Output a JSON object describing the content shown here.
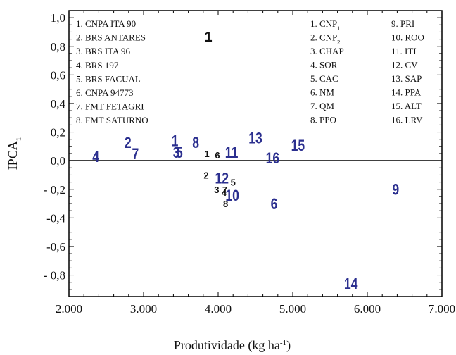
{
  "chart_data": {
    "type": "scatter",
    "xlabel": "Produtividade (kg ha",
    "xlabel_sup": "-1",
    "xlabel_close": ")",
    "ylabel": "IPCA",
    "ylabel_sub": "1",
    "xlim": [
      2000,
      7000
    ],
    "ylim": [
      -0.95,
      1.05
    ],
    "xticks": [
      {
        "v": 2000,
        "t": "2.000"
      },
      {
        "v": 3000,
        "t": "3.000"
      },
      {
        "v": 4000,
        "t": "4.000"
      },
      {
        "v": 5000,
        "t": "5.000"
      },
      {
        "v": 6000,
        "t": "6.000"
      },
      {
        "v": 7000,
        "t": "7.000"
      }
    ],
    "yticks": [
      {
        "v": 1.0,
        "t": "1,0"
      },
      {
        "v": 0.8,
        "t": "0,8"
      },
      {
        "v": 0.6,
        "t": "0,6"
      },
      {
        "v": 0.4,
        "t": "0,4"
      },
      {
        "v": 0.2,
        "t": "0,2"
      },
      {
        "v": 0.0,
        "t": "0,0"
      },
      {
        "v": -0.2,
        "t": "- 0,2"
      },
      {
        "v": -0.4,
        "t": "-0,4"
      },
      {
        "v": -0.6,
        "t": "-0,6"
      },
      {
        "v": -0.8,
        "t": "- 0,8"
      }
    ],
    "series": [
      {
        "points": [
          {
            "label": "1",
            "x": 3850,
            "y": 0.05
          },
          {
            "label": "2",
            "x": 3840,
            "y": -0.1
          },
          {
            "label": "3",
            "x": 3980,
            "y": -0.2
          },
          {
            "label": "4",
            "x": 4080,
            "y": -0.22
          },
          {
            "label": "5",
            "x": 4200,
            "y": -0.15
          },
          {
            "label": "6",
            "x": 3990,
            "y": 0.04
          },
          {
            "label": "7",
            "x": 4090,
            "y": -0.2
          },
          {
            "label": "8",
            "x": 4100,
            "y": -0.3
          }
        ]
      },
      {
        "points": [
          {
            "label": "1",
            "x": 3420,
            "y": 0.14
          },
          {
            "label": "2",
            "x": 2790,
            "y": 0.13
          },
          {
            "label": "3",
            "x": 3440,
            "y": 0.06
          },
          {
            "label": "4",
            "x": 2360,
            "y": 0.03
          },
          {
            "label": "5",
            "x": 3480,
            "y": 0.06
          },
          {
            "label": "6",
            "x": 4750,
            "y": -0.3
          },
          {
            "label": "7",
            "x": 2890,
            "y": 0.05
          },
          {
            "label": "8",
            "x": 3700,
            "y": 0.13
          },
          {
            "label": "9",
            "x": 6380,
            "y": -0.2
          },
          {
            "label": "10",
            "x": 4190,
            "y": -0.24
          },
          {
            "label": "11",
            "x": 4180,
            "y": 0.06
          },
          {
            "label": "12",
            "x": 4050,
            "y": -0.12
          },
          {
            "label": "13",
            "x": 4500,
            "y": 0.16
          },
          {
            "label": "14",
            "x": 5780,
            "y": -0.86
          },
          {
            "label": "15",
            "x": 5070,
            "y": 0.11
          },
          {
            "label": "16",
            "x": 4730,
            "y": 0.02
          }
        ]
      }
    ],
    "legend_genotypes": [
      "1.   CNPA ITA 90",
      "2.   BRS ANTARES",
      "3.   BRS ITA 96",
      "4.   BRS 197",
      "5.   BRS FACUAL",
      "6.   CNPA 94773",
      "7.   FMT FETAGRI",
      "8.   FMT SATURNO"
    ],
    "legend_environments": [
      {
        "num": "1.",
        "name": "CNP",
        "sub": "1"
      },
      {
        "num": "2.",
        "name": "CNP",
        "sub": "2"
      },
      {
        "num": "3.",
        "name": "CHAP",
        "sub": ""
      },
      {
        "num": "4.",
        "name": "SOR",
        "sub": ""
      },
      {
        "num": "5.",
        "name": "CAC",
        "sub": ""
      },
      {
        "num": "6.",
        "name": "NM",
        "sub": ""
      },
      {
        "num": "7.",
        "name": "QM",
        "sub": ""
      },
      {
        "num": "8.",
        "name": "PPO",
        "sub": ""
      },
      {
        "num": "9.",
        "name": "PRI",
        "sub": ""
      },
      {
        "num": "10.",
        "name": "ROO",
        "sub": ""
      },
      {
        "num": "11.",
        "name": "ITI",
        "sub": ""
      },
      {
        "num": "12.",
        "name": "CV",
        "sub": ""
      },
      {
        "num": "13.",
        "name": "SAP",
        "sub": ""
      },
      {
        "num": "14.",
        "name": "PPA",
        "sub": ""
      },
      {
        "num": "15.",
        "name": "ALT",
        "sub": ""
      },
      {
        "num": "16.",
        "name": "LRV",
        "sub": ""
      }
    ],
    "highlighted_label": "1",
    "reference_line_y": 0.0,
    "colors": {
      "genotype": "#111111",
      "environment": "#2b2f8f",
      "axis": "#000000"
    }
  }
}
